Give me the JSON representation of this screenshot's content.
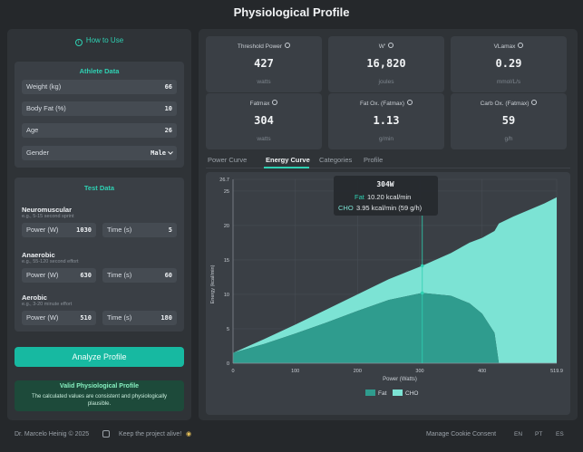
{
  "page": {
    "title": "Physiological Profile"
  },
  "left_panel": {
    "how_to_use": "How to Use",
    "athlete": {
      "title": "Athlete Data",
      "fields": [
        {
          "label": "Weight (kg)",
          "value": "66"
        },
        {
          "label": "Body Fat (%)",
          "value": "10"
        },
        {
          "label": "Age",
          "value": "26"
        },
        {
          "label": "Gender",
          "value": "Male"
        }
      ]
    },
    "test": {
      "title": "Test Data",
      "sections": [
        {
          "name": "Neuromuscular",
          "hint": "e.g., 5-15 second sprint",
          "power_label": "Power (W)",
          "power": "1030",
          "time_label": "Time (s)",
          "time": "5"
        },
        {
          "name": "Anaerobic",
          "hint": "e.g., 55-120 second effort",
          "power_label": "Power (W)",
          "power": "630",
          "time_label": "Time (s)",
          "time": "60"
        },
        {
          "name": "Aerobic",
          "hint": "e.g., 3-20 minute effort",
          "power_label": "Power (W)",
          "power": "510",
          "time_label": "Time (s)",
          "time": "180"
        }
      ]
    },
    "analyze_button": "Analyze Profile",
    "valid": {
      "title": "Valid Physiological Profile",
      "description": "The calculated values are consistent and physiologically plausible."
    }
  },
  "metrics": [
    {
      "name": "Threshold Power",
      "value": "427",
      "unit": "watts"
    },
    {
      "name": "W'",
      "value": "16,820",
      "unit": "joules"
    },
    {
      "name": "VLamax",
      "value": "0.29",
      "unit": "mmol/L/s"
    },
    {
      "name": "Fatmax",
      "value": "304",
      "unit": "watts"
    },
    {
      "name": "Fat Ox. (Fatmax)",
      "value": "1.13",
      "unit": "g/min"
    },
    {
      "name": "Carb Ox. (Fatmax)",
      "value": "59",
      "unit": "g/h"
    }
  ],
  "tabs": [
    {
      "label": "Power Curve",
      "active": false
    },
    {
      "label": "Energy Curve",
      "active": true
    },
    {
      "label": "Categories",
      "active": false
    },
    {
      "label": "Profile",
      "active": false
    }
  ],
  "chart_data": {
    "type": "area",
    "stacked": true,
    "xlabel": "Power (Watts)",
    "ylabel": "Energy (kcal/min)",
    "xlim": [
      0,
      519.9
    ],
    "ylim": [
      0,
      26.7
    ],
    "x_ticks": [
      "0",
      "100",
      "200",
      "300",
      "400",
      "519.9"
    ],
    "y_ticks": [
      "0",
      "5",
      "10",
      "15",
      "20",
      "25",
      "26.7"
    ],
    "x": [
      0,
      50,
      100,
      150,
      200,
      250,
      304,
      350,
      380,
      400,
      420,
      427,
      450,
      500,
      519.9
    ],
    "series": [
      {
        "name": "Fat",
        "color": "#2f9c8e",
        "values": [
          1.5,
          2.8,
          4.3,
          5.9,
          7.6,
          9.2,
          10.2,
          9.8,
          8.7,
          7.2,
          4.4,
          0,
          0,
          0,
          0
        ]
      },
      {
        "name": "CHO",
        "color": "#7ce3d4",
        "values": [
          0,
          0.7,
          1.3,
          1.9,
          2.4,
          3.0,
          3.95,
          6.2,
          8.8,
          11.0,
          14.8,
          20.3,
          21.3,
          23.2,
          24.1
        ]
      }
    ],
    "tooltip": {
      "title": "304W",
      "fat_label": "Fat",
      "fat_value": "10.20 kcal/min",
      "cho_label": "CHO",
      "cho_value": "3.95 kcal/min (59 g/h)",
      "x": 304
    },
    "legend": [
      "Fat",
      "CHO"
    ],
    "grid": true
  },
  "footer": {
    "credit": "Dr. Marcelo Heinig © 2025",
    "support": "Keep the project alive!",
    "cookie": "Manage Cookie Consent",
    "languages": [
      "EN",
      "PT",
      "ES"
    ]
  },
  "colors": {
    "accent": "#2fd1b3",
    "fat": "#2f9c8e",
    "cho": "#7ce3d4",
    "button": "#17b9a1",
    "valid_bg": "#1d4a3a"
  }
}
